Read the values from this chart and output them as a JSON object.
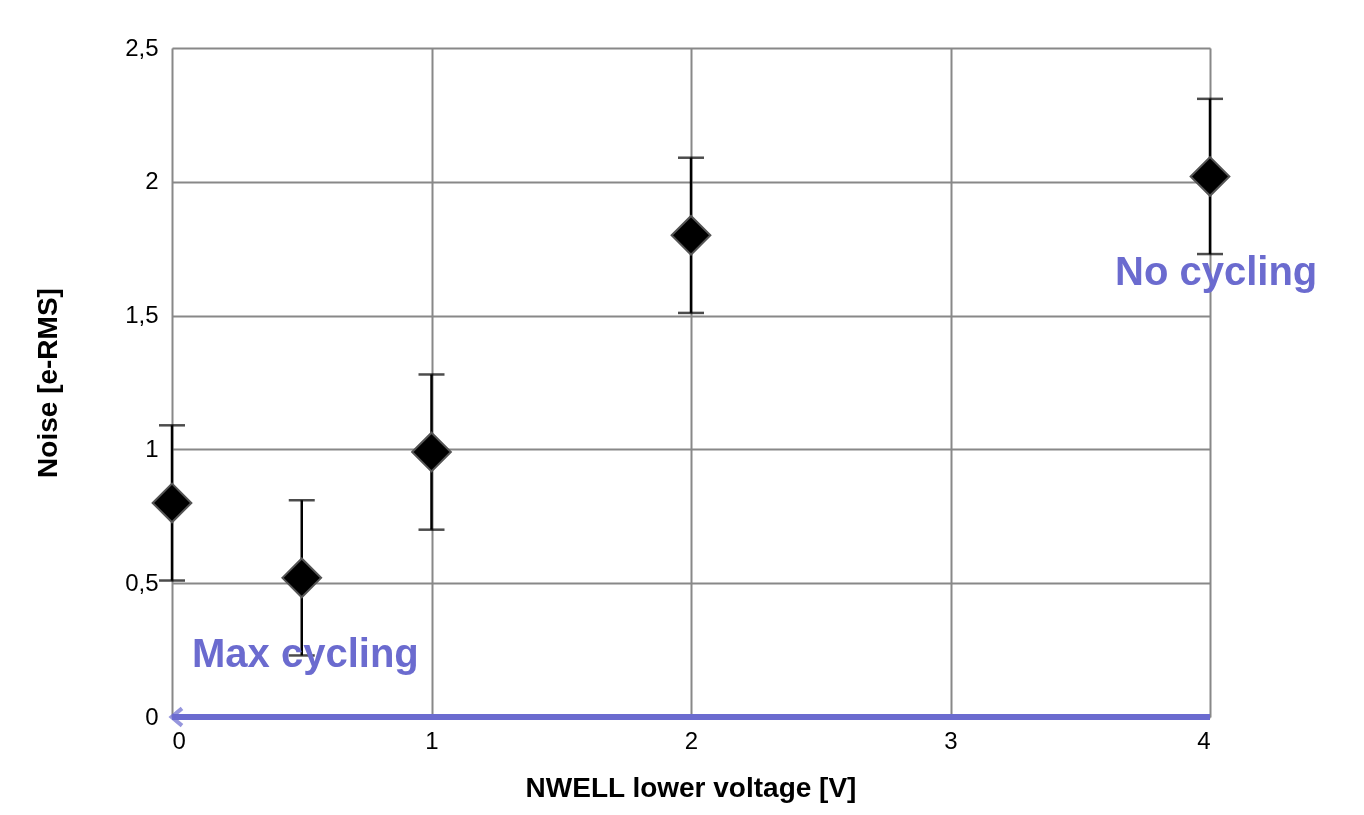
{
  "chart_data": {
    "type": "scatter",
    "xlabel": "NWELL lower voltage [V]",
    "ylabel": "Noise [e-RMS]",
    "x": [
      0,
      0.5,
      1,
      2,
      4
    ],
    "series": [
      {
        "color": "#000000",
        "values": [
          0.8,
          0.52,
          0.99,
          1.8,
          2.02
        ],
        "errors": [
          0.29,
          0.29,
          0.29,
          0.29,
          0.29
        ]
      }
    ],
    "xlim": [
      0,
      4
    ],
    "xticks": [
      0,
      1,
      2,
      3,
      4
    ],
    "ylim": [
      0,
      2.5
    ],
    "yticks": [
      0,
      {
        "value": 0.5,
        "label": "0,5"
      },
      1,
      {
        "value": 1.5,
        "label": "1,5"
      },
      2,
      {
        "value": 2.5,
        "label": "2,5"
      }
    ],
    "annotations": [
      "Max cycling",
      "No cycling"
    ],
    "grid": true,
    "marker": "diamond"
  }
}
